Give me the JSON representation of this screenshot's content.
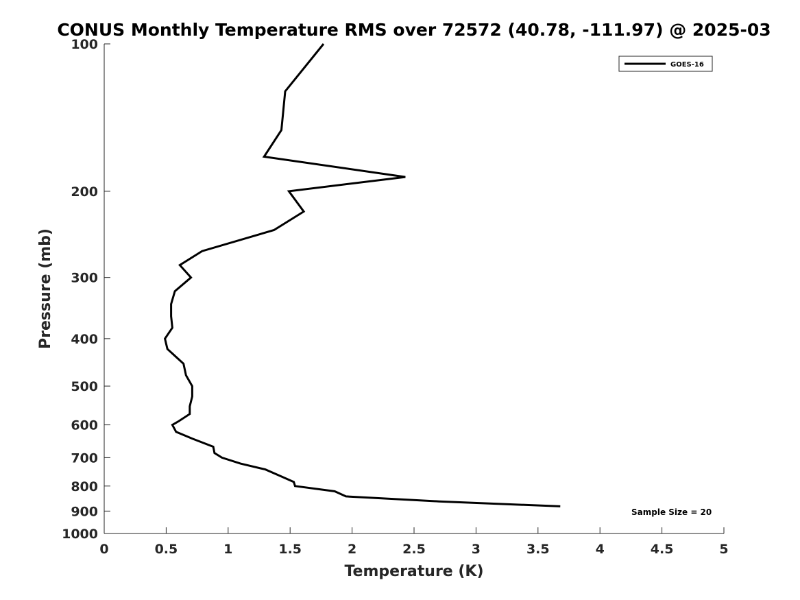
{
  "chart_data": {
    "type": "line",
    "title": "CONUS Monthly Temperature RMS over 72572 (40.78, -111.97) @ 2025-03",
    "xlabel": "Temperature (K)",
    "ylabel": "Pressure (mb)",
    "xlim": [
      0,
      5
    ],
    "ylim": [
      100,
      1000
    ],
    "y_scale": "log",
    "y_reversed": true,
    "x_ticks": [
      0,
      0.5,
      1,
      1.5,
      2,
      2.5,
      3,
      3.5,
      4,
      4.5,
      5
    ],
    "x_tick_labels": [
      "0",
      "0.5",
      "1",
      "1.5",
      "2",
      "2.5",
      "3",
      "3.5",
      "4",
      "4.5",
      "5"
    ],
    "y_ticks": [
      100,
      200,
      300,
      400,
      500,
      600,
      700,
      800,
      900,
      1000
    ],
    "y_tick_labels": [
      "100",
      "200",
      "300",
      "400",
      "500",
      "600",
      "700",
      "800",
      "900",
      "1000"
    ],
    "grid": false,
    "legend": {
      "placement": "top-right",
      "entries": [
        "GOES-16"
      ]
    },
    "annotation": "Sample Size = 20",
    "series": [
      {
        "name": "GOES-16",
        "color": "#000000",
        "points": [
          {
            "x": 1.77,
            "p": 100
          },
          {
            "x": 1.46,
            "p": 125
          },
          {
            "x": 1.43,
            "p": 150
          },
          {
            "x": 1.29,
            "p": 170
          },
          {
            "x": 2.43,
            "p": 187
          },
          {
            "x": 1.49,
            "p": 200
          },
          {
            "x": 1.61,
            "p": 220
          },
          {
            "x": 1.37,
            "p": 240
          },
          {
            "x": 0.79,
            "p": 265
          },
          {
            "x": 0.61,
            "p": 283
          },
          {
            "x": 0.7,
            "p": 300
          },
          {
            "x": 0.57,
            "p": 320
          },
          {
            "x": 0.54,
            "p": 340
          },
          {
            "x": 0.54,
            "p": 360
          },
          {
            "x": 0.55,
            "p": 380
          },
          {
            "x": 0.49,
            "p": 400
          },
          {
            "x": 0.51,
            "p": 420
          },
          {
            "x": 0.64,
            "p": 450
          },
          {
            "x": 0.66,
            "p": 475
          },
          {
            "x": 0.71,
            "p": 500
          },
          {
            "x": 0.71,
            "p": 525
          },
          {
            "x": 0.69,
            "p": 550
          },
          {
            "x": 0.69,
            "p": 570
          },
          {
            "x": 0.6,
            "p": 590
          },
          {
            "x": 0.55,
            "p": 600
          },
          {
            "x": 0.58,
            "p": 620
          },
          {
            "x": 0.71,
            "p": 640
          },
          {
            "x": 0.88,
            "p": 665
          },
          {
            "x": 0.89,
            "p": 685
          },
          {
            "x": 0.95,
            "p": 700
          },
          {
            "x": 1.1,
            "p": 720
          },
          {
            "x": 1.3,
            "p": 740
          },
          {
            "x": 1.43,
            "p": 765
          },
          {
            "x": 1.53,
            "p": 785
          },
          {
            "x": 1.54,
            "p": 800
          },
          {
            "x": 1.86,
            "p": 820
          },
          {
            "x": 1.95,
            "p": 840
          },
          {
            "x": 2.7,
            "p": 860
          },
          {
            "x": 3.68,
            "p": 880
          }
        ]
      }
    ]
  }
}
